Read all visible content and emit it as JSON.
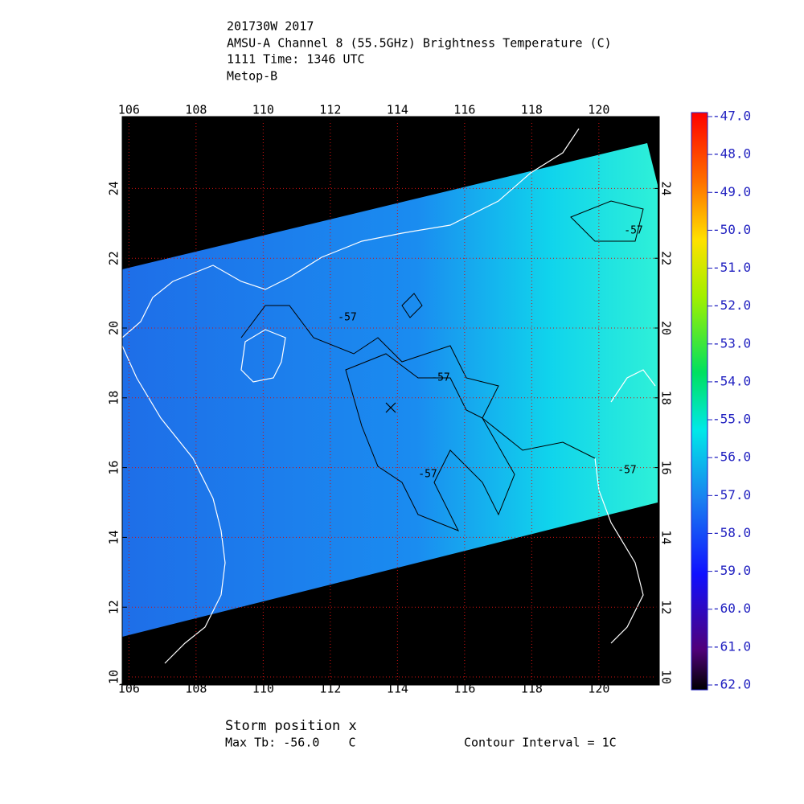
{
  "header": {
    "lines": [
      "201730W 2017",
      "AMSU-A Channel 8 (55.5GHz) Brightness Temperature (C)",
      "1111 Time: 1346 UTC",
      "Metop-B"
    ]
  },
  "map": {
    "xlim": [
      105.8,
      121.8
    ],
    "ylim": [
      9.77,
      26.06
    ],
    "xticks": [
      106,
      108,
      110,
      112,
      114,
      116,
      118,
      120
    ],
    "yticks": [
      10,
      12,
      14,
      16,
      18,
      20,
      22,
      24
    ],
    "contour_labels": [
      "-57",
      "-57",
      "-57",
      "-57",
      "-57"
    ]
  },
  "colorbar": {
    "clim": [
      -62,
      -47
    ],
    "ticks": [
      {
        "value": -47,
        "label": "-47.0"
      },
      {
        "value": -48,
        "label": "-48.0"
      },
      {
        "value": -49,
        "label": "-49.0"
      },
      {
        "value": -50,
        "label": "-50.0"
      },
      {
        "value": -51,
        "label": "-51.0"
      },
      {
        "value": -52,
        "label": "-52.0"
      },
      {
        "value": -53,
        "label": "-53.0"
      },
      {
        "value": -54,
        "label": "-54.0"
      },
      {
        "value": -55,
        "label": "-55.0"
      },
      {
        "value": -56,
        "label": "-56.0"
      },
      {
        "value": -57,
        "label": "-57.0"
      },
      {
        "value": -58,
        "label": "-58.0"
      },
      {
        "value": -59,
        "label": "-59.0"
      },
      {
        "value": -60,
        "label": "-60.0"
      },
      {
        "value": -61,
        "label": "-61.0"
      },
      {
        "value": -62,
        "label": "-62.0"
      }
    ]
  },
  "footer": {
    "storm": "Storm position x",
    "max_tb": "Max Tb: -56.0    C",
    "contour_interval": "Contour Interval = 1C"
  }
}
